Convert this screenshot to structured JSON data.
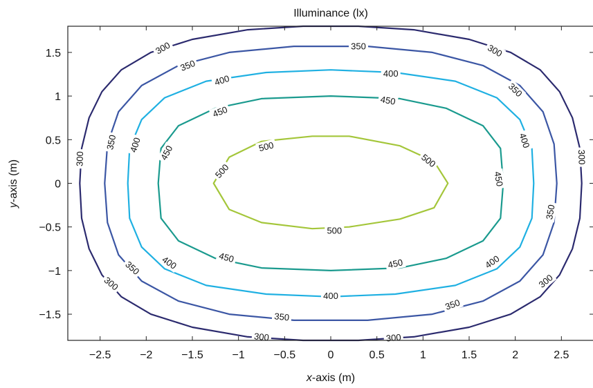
{
  "chart_data": {
    "type": "contour",
    "title": "Illuminance (lx)",
    "xlabel_var": "x",
    "xlabel_rest": "-axis (m)",
    "ylabel_var": "y",
    "ylabel_rest": "-axis (m)",
    "xlim": [
      -2.85,
      2.85
    ],
    "ylim": [
      -1.8,
      1.8
    ],
    "xticks": [
      -2.5,
      -2,
      -1.5,
      -1,
      -0.5,
      0,
      0.5,
      1,
      1.5,
      2,
      2.5
    ],
    "xtick_labels": [
      "−2.5",
      "−2",
      "−1.5",
      "−1",
      "−0.5",
      "0",
      "0.5",
      "1",
      "1.5",
      "2",
      "2.5"
    ],
    "yticks": [
      1.5,
      1,
      0.5,
      0,
      -0.5,
      -1,
      -1.5
    ],
    "ytick_labels": [
      "1.5",
      "1",
      "0.5",
      "0",
      "−0.5",
      "−1",
      "−1.5"
    ],
    "grid": false,
    "series": [
      {
        "level": 300,
        "color": "#2b2a6e",
        "points": [
          [
            -2.72,
            0
          ],
          [
            -2.7,
            0.4
          ],
          [
            -2.62,
            0.75
          ],
          [
            -2.48,
            1.05
          ],
          [
            -2.27,
            1.3
          ],
          [
            -1.95,
            1.5
          ],
          [
            -1.5,
            1.65
          ],
          [
            -0.9,
            1.76
          ],
          [
            -0.3,
            1.8
          ],
          [
            0.3,
            1.8
          ],
          [
            0.9,
            1.76
          ],
          [
            1.5,
            1.65
          ],
          [
            1.95,
            1.5
          ],
          [
            2.27,
            1.3
          ],
          [
            2.48,
            1.05
          ],
          [
            2.62,
            0.75
          ],
          [
            2.7,
            0.4
          ],
          [
            2.72,
            0
          ],
          [
            2.7,
            -0.4
          ],
          [
            2.62,
            -0.75
          ],
          [
            2.48,
            -1.05
          ],
          [
            2.27,
            -1.3
          ],
          [
            1.95,
            -1.5
          ],
          [
            1.5,
            -1.65
          ],
          [
            0.9,
            -1.76
          ],
          [
            0.3,
            -1.8
          ],
          [
            -0.3,
            -1.8
          ],
          [
            -0.9,
            -1.76
          ],
          [
            -1.5,
            -1.65
          ],
          [
            -1.95,
            -1.5
          ],
          [
            -2.27,
            -1.3
          ],
          [
            -2.48,
            -1.05
          ],
          [
            -2.62,
            -0.75
          ],
          [
            -2.7,
            -0.4
          ]
        ],
        "labels": [
          {
            "x": -1.82,
            "y": 1.55,
            "text": "300",
            "rot": -30
          },
          {
            "x": 1.78,
            "y": 1.52,
            "text": "300",
            "rot": 30
          },
          {
            "x": -2.72,
            "y": 0.28,
            "text": "300",
            "rot": -88
          },
          {
            "x": 2.72,
            "y": 0.3,
            "text": "300",
            "rot": 88
          },
          {
            "x": -2.38,
            "y": -1.15,
            "text": "300",
            "rot": 40
          },
          {
            "x": 2.33,
            "y": -1.12,
            "text": "300",
            "rot": -40
          },
          {
            "x": -0.75,
            "y": -1.76,
            "text": "300",
            "rot": 6
          },
          {
            "x": 0.68,
            "y": -1.77,
            "text": "300",
            "rot": -5
          }
        ]
      },
      {
        "level": 350,
        "color": "#3b56a4",
        "points": [
          [
            -2.45,
            0
          ],
          [
            -2.42,
            0.45
          ],
          [
            -2.3,
            0.82
          ],
          [
            -2.05,
            1.12
          ],
          [
            -1.65,
            1.35
          ],
          [
            -1.1,
            1.5
          ],
          [
            -0.4,
            1.57
          ],
          [
            0.4,
            1.57
          ],
          [
            1.1,
            1.5
          ],
          [
            1.65,
            1.35
          ],
          [
            2.05,
            1.12
          ],
          [
            2.3,
            0.82
          ],
          [
            2.42,
            0.45
          ],
          [
            2.45,
            0
          ],
          [
            2.42,
            -0.45
          ],
          [
            2.3,
            -0.82
          ],
          [
            2.05,
            -1.12
          ],
          [
            1.65,
            -1.35
          ],
          [
            1.1,
            -1.5
          ],
          [
            0.4,
            -1.57
          ],
          [
            -0.4,
            -1.57
          ],
          [
            -1.1,
            -1.5
          ],
          [
            -1.65,
            -1.35
          ],
          [
            -2.05,
            -1.12
          ],
          [
            -2.3,
            -0.82
          ],
          [
            -2.42,
            -0.45
          ]
        ],
        "labels": [
          {
            "x": -1.55,
            "y": 1.35,
            "text": "350",
            "rot": -22
          },
          {
            "x": 0.3,
            "y": 1.57,
            "text": "350",
            "rot": 0
          },
          {
            "x": 2.0,
            "y": 1.07,
            "text": "350",
            "rot": 45
          },
          {
            "x": -2.38,
            "y": 0.47,
            "text": "350",
            "rot": -78
          },
          {
            "x": 2.38,
            "y": -0.33,
            "text": "350",
            "rot": -80
          },
          {
            "x": -2.15,
            "y": -0.97,
            "text": "350",
            "rot": 42
          },
          {
            "x": -0.53,
            "y": -1.53,
            "text": "350",
            "rot": 6
          },
          {
            "x": 1.32,
            "y": -1.39,
            "text": "350",
            "rot": -20
          }
        ]
      },
      {
        "level": 400,
        "color": "#1fb0e2",
        "points": [
          [
            -2.2,
            0
          ],
          [
            -2.18,
            0.4
          ],
          [
            -2.05,
            0.73
          ],
          [
            -1.8,
            0.98
          ],
          [
            -1.35,
            1.17
          ],
          [
            -0.7,
            1.27
          ],
          [
            0,
            1.3
          ],
          [
            0.7,
            1.27
          ],
          [
            1.35,
            1.17
          ],
          [
            1.8,
            0.98
          ],
          [
            2.05,
            0.73
          ],
          [
            2.18,
            0.4
          ],
          [
            2.2,
            0
          ],
          [
            2.18,
            -0.4
          ],
          [
            2.05,
            -0.73
          ],
          [
            1.8,
            -0.98
          ],
          [
            1.35,
            -1.17
          ],
          [
            0.7,
            -1.27
          ],
          [
            0,
            -1.3
          ],
          [
            -0.7,
            -1.27
          ],
          [
            -1.35,
            -1.17
          ],
          [
            -1.8,
            -0.98
          ],
          [
            -2.05,
            -0.73
          ],
          [
            -2.18,
            -0.4
          ]
        ],
        "labels": [
          {
            "x": -1.18,
            "y": 1.18,
            "text": "400",
            "rot": -18
          },
          {
            "x": 0.65,
            "y": 1.26,
            "text": "400",
            "rot": 0
          },
          {
            "x": -2.12,
            "y": 0.44,
            "text": "400",
            "rot": -72
          },
          {
            "x": 2.1,
            "y": 0.49,
            "text": "400",
            "rot": 72
          },
          {
            "x": -1.75,
            "y": -0.91,
            "text": "400",
            "rot": 35
          },
          {
            "x": 0.0,
            "y": -1.29,
            "text": "400",
            "rot": 0
          },
          {
            "x": 1.75,
            "y": -0.9,
            "text": "400",
            "rot": -35
          }
        ]
      },
      {
        "level": 450,
        "color": "#1a9a8e",
        "points": [
          [
            -1.87,
            0
          ],
          [
            -1.84,
            0.4
          ],
          [
            -1.65,
            0.66
          ],
          [
            -1.25,
            0.86
          ],
          [
            -0.75,
            0.97
          ],
          [
            0,
            1.0
          ],
          [
            0.75,
            0.97
          ],
          [
            1.25,
            0.86
          ],
          [
            1.65,
            0.66
          ],
          [
            1.84,
            0.4
          ],
          [
            1.87,
            0
          ],
          [
            1.84,
            -0.4
          ],
          [
            1.65,
            -0.66
          ],
          [
            1.25,
            -0.86
          ],
          [
            0.75,
            -0.97
          ],
          [
            0,
            -1.0
          ],
          [
            -0.75,
            -0.97
          ],
          [
            -1.25,
            -0.86
          ],
          [
            -1.65,
            -0.66
          ],
          [
            -1.84,
            -0.4
          ]
        ],
        "labels": [
          {
            "x": -1.2,
            "y": 0.82,
            "text": "450",
            "rot": -22
          },
          {
            "x": 0.62,
            "y": 0.95,
            "text": "450",
            "rot": 10
          },
          {
            "x": -1.78,
            "y": 0.35,
            "text": "450",
            "rot": -62
          },
          {
            "x": 1.82,
            "y": 0.05,
            "text": "450",
            "rot": 80
          },
          {
            "x": -1.13,
            "y": -0.85,
            "text": "450",
            "rot": 16
          },
          {
            "x": 0.7,
            "y": -0.92,
            "text": "450",
            "rot": -12
          }
        ]
      },
      {
        "level": 500,
        "color": "#a4c63a",
        "points": [
          [
            -1.27,
            0
          ],
          [
            -1.1,
            0.3
          ],
          [
            -0.75,
            0.48
          ],
          [
            -0.2,
            0.54
          ],
          [
            0.2,
            0.54
          ],
          [
            0.75,
            0.43
          ],
          [
            1.12,
            0.25
          ],
          [
            1.27,
            0
          ],
          [
            1.12,
            -0.28
          ],
          [
            0.75,
            -0.41
          ],
          [
            0.2,
            -0.5
          ],
          [
            -0.2,
            -0.52
          ],
          [
            -0.75,
            -0.45
          ],
          [
            -1.1,
            -0.3
          ]
        ],
        "labels": [
          {
            "x": -0.7,
            "y": 0.42,
            "text": "500",
            "rot": -14
          },
          {
            "x": 1.06,
            "y": 0.26,
            "text": "500",
            "rot": 38
          },
          {
            "x": -1.18,
            "y": 0.14,
            "text": "500",
            "rot": -48
          },
          {
            "x": 0.04,
            "y": -0.54,
            "text": "500",
            "rot": 0
          }
        ]
      }
    ]
  }
}
